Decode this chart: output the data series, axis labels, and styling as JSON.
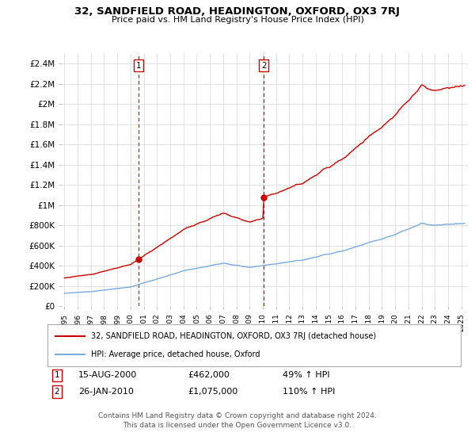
{
  "title": "32, SANDFIELD ROAD, HEADINGTON, OXFORD, OX3 7RJ",
  "subtitle": "Price paid vs. HM Land Registry's House Price Index (HPI)",
  "ylabel_ticks": [
    "£0",
    "£200K",
    "£400K",
    "£600K",
    "£800K",
    "£1M",
    "£1.2M",
    "£1.4M",
    "£1.6M",
    "£1.8M",
    "£2M",
    "£2.2M",
    "£2.4M"
  ],
  "ytick_values": [
    0,
    200000,
    400000,
    600000,
    800000,
    1000000,
    1200000,
    1400000,
    1600000,
    1800000,
    2000000,
    2200000,
    2400000
  ],
  "ylim": [
    0,
    2500000
  ],
  "xlim_start": 1994.8,
  "xlim_end": 2025.5,
  "sale1_x": 2000.62,
  "sale1_y": 462000,
  "sale2_x": 2010.07,
  "sale2_y": 1075000,
  "vline1_x": 2000.62,
  "vline2_x": 2010.07,
  "legend_line1": "32, SANDFIELD ROAD, HEADINGTON, OXFORD, OX3 7RJ (detached house)",
  "legend_line2": "HPI: Average price, detached house, Oxford",
  "annotation1_date": "15-AUG-2000",
  "annotation1_price": "£462,000",
  "annotation1_hpi": "49% ↑ HPI",
  "annotation2_date": "26-JAN-2010",
  "annotation2_price": "£1,075,000",
  "annotation2_hpi": "110% ↑ HPI",
  "footer": "Contains HM Land Registry data © Crown copyright and database right 2024.\nThis data is licensed under the Open Government Licence v3.0.",
  "hpi_color": "#7aaadd",
  "price_color": "#cc0000",
  "vline_color": "#cc0000",
  "marker_color": "#cc0000",
  "box_color": "#cc0000",
  "background_color": "#ffffff",
  "grid_color": "#cccccc"
}
